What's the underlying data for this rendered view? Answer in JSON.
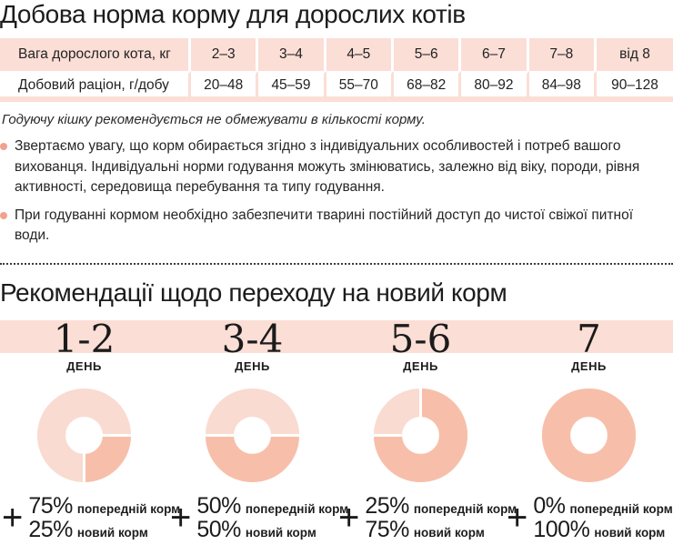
{
  "colors": {
    "pink_bg": "#fbded6",
    "donut_light": "#f9dbd1",
    "donut_dark": "#f7bfaa",
    "bullet_dot": "#f0a28f"
  },
  "section1": {
    "title": "Добова норма корму для дорослих котів",
    "table": {
      "header": [
        "Вага дорослого кота, кг",
        "2–3",
        "3–4",
        "4–5",
        "5–6",
        "6–7",
        "7–8",
        "від 8"
      ],
      "row": [
        "Добовий раціон, г/добу",
        "20–48",
        "45–59",
        "55–70",
        "68–82",
        "80–92",
        "84–98",
        "90–128"
      ]
    },
    "note": "Годуючу кішку рекомендується не обмежувати в кількості корму.",
    "bullets": [
      "Звертаємо увагу, що корм обирається згідно з індивідуальних особливостей і потреб вашого вихованця. Індивідуальні норми годування можуть змінюватись, залежно від віку, породи, рівня активності, середовища перебування та типу годування.",
      "При годуванні кормом необхідно забезпечити тварині постійний доступ до чистої свіжої питної води."
    ]
  },
  "section2": {
    "title": "Рекомендації щодо переходу на новий корм",
    "day_label": "ДЕНЬ",
    "prev_label": "попередній корм",
    "new_label": "новий корм",
    "plus_sign": "+",
    "steps": [
      {
        "day": "1-2",
        "prev_pct": "75%",
        "new_pct": "25%"
      },
      {
        "day": "3-4",
        "prev_pct": "50%",
        "new_pct": "50%"
      },
      {
        "day": "5-6",
        "prev_pct": "25%",
        "new_pct": "75%"
      },
      {
        "day": "7",
        "prev_pct": "0%",
        "new_pct": "100%"
      }
    ]
  },
  "chart_data": [
    {
      "type": "pie",
      "subtype": "donut",
      "title": "1-2 день",
      "labels": [
        "попередній корм",
        "новий корм"
      ],
      "values": [
        75,
        25
      ],
      "new_arc_start_pct": 0
    },
    {
      "type": "pie",
      "subtype": "donut",
      "title": "3-4 день",
      "labels": [
        "попередній корм",
        "новий корм"
      ],
      "values": [
        50,
        50
      ],
      "new_arc_start_pct": 0
    },
    {
      "type": "pie",
      "subtype": "donut",
      "title": "5-6 день",
      "labels": [
        "попередній корм",
        "новий корм"
      ],
      "values": [
        25,
        75
      ],
      "new_arc_start_pct": 75
    },
    {
      "type": "pie",
      "subtype": "donut",
      "title": "7 день",
      "labels": [
        "попередній корм",
        "новий корм"
      ],
      "values": [
        0,
        100
      ],
      "new_arc_start_pct": 0
    }
  ]
}
